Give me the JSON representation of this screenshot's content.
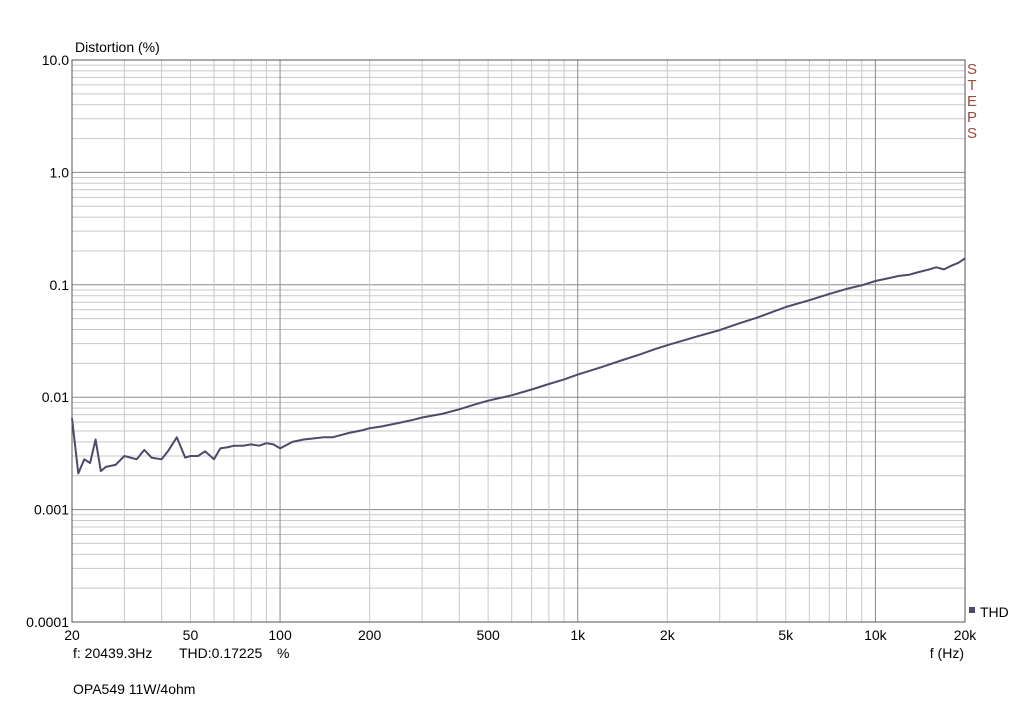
{
  "chart_data": {
    "type": "line",
    "ylabel": "Distortion (%)",
    "xlabel": "f (Hz)",
    "x_scale": "log",
    "y_scale": "log",
    "xlim": [
      20,
      20000
    ],
    "ylim": [
      0.0001,
      10
    ],
    "x_tick_labels": [
      {
        "v": 20,
        "label": "20"
      },
      {
        "v": 50,
        "label": "50"
      },
      {
        "v": 100,
        "label": "100"
      },
      {
        "v": 200,
        "label": "200"
      },
      {
        "v": 500,
        "label": "500"
      },
      {
        "v": 1000,
        "label": "1k"
      },
      {
        "v": 2000,
        "label": "2k"
      },
      {
        "v": 5000,
        "label": "5k"
      },
      {
        "v": 10000,
        "label": "10k"
      },
      {
        "v": 20000,
        "label": "20k"
      }
    ],
    "y_tick_labels": [
      {
        "v": 10,
        "label": "10.0"
      },
      {
        "v": 1,
        "label": "1.0"
      },
      {
        "v": 0.1,
        "label": "0.1"
      },
      {
        "v": 0.01,
        "label": "0.01"
      },
      {
        "v": 0.001,
        "label": "0.001"
      },
      {
        "v": 0.0001,
        "label": "0.0001"
      }
    ],
    "grid": true,
    "legend_position": "bottom-right",
    "series": [
      {
        "name": "THD",
        "color": "#4b4b6b",
        "x": [
          20,
          21,
          22,
          23,
          24,
          25,
          26,
          28,
          30,
          33,
          35,
          37,
          40,
          42,
          45,
          48,
          50,
          53,
          56,
          60,
          63,
          67,
          70,
          75,
          80,
          85,
          90,
          95,
          100,
          110,
          120,
          130,
          140,
          150,
          170,
          190,
          200,
          220,
          250,
          280,
          300,
          350,
          400,
          450,
          500,
          600,
          700,
          800,
          900,
          1000,
          1200,
          1400,
          1600,
          1800,
          2000,
          2500,
          3000,
          3500,
          4000,
          4500,
          5000,
          6000,
          7000,
          8000,
          9000,
          10000,
          11000,
          12000,
          13000,
          14000,
          15000,
          16000,
          17000,
          18000,
          19000,
          20000
        ],
        "y": [
          0.0065,
          0.0021,
          0.0028,
          0.0026,
          0.0042,
          0.0022,
          0.0024,
          0.0025,
          0.003,
          0.0028,
          0.0034,
          0.0029,
          0.0028,
          0.0033,
          0.0044,
          0.0029,
          0.003,
          0.003,
          0.0033,
          0.0028,
          0.0035,
          0.0036,
          0.0037,
          0.0037,
          0.0038,
          0.0037,
          0.0039,
          0.0038,
          0.0035,
          0.004,
          0.0042,
          0.0043,
          0.0044,
          0.0044,
          0.0048,
          0.0051,
          0.0053,
          0.0055,
          0.0059,
          0.0063,
          0.0066,
          0.0071,
          0.0078,
          0.0086,
          0.0093,
          0.0104,
          0.0117,
          0.0131,
          0.0144,
          0.0159,
          0.0185,
          0.0212,
          0.0238,
          0.0265,
          0.029,
          0.0345,
          0.0395,
          0.0455,
          0.051,
          0.0572,
          0.0635,
          0.073,
          0.083,
          0.092,
          0.099,
          0.108,
          0.114,
          0.12,
          0.123,
          0.13,
          0.136,
          0.143,
          0.137,
          0.148,
          0.157,
          0.172
        ]
      }
    ]
  },
  "readout": {
    "freq": "f: 20439.3Hz",
    "thd": "THD:0.17225",
    "unit": "%"
  },
  "watermark": "STEPS",
  "caption": "OPA549 11W/4ohm"
}
